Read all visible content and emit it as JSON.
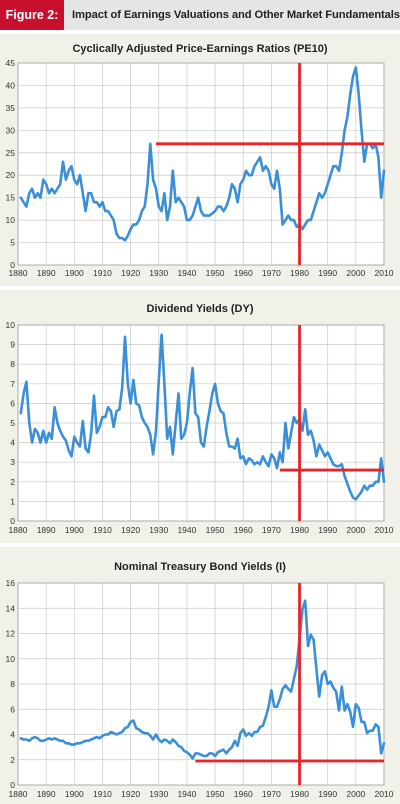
{
  "figure": {
    "label": "Figure 2:",
    "title": "Impact of Earnings Valuations and Other Market Fundamentals"
  },
  "colors": {
    "line": "#3a8fd6",
    "reference": "#e8232a",
    "panel_bg": "#f2f1e9",
    "plot_bg": "#ffffff",
    "grid": "#c9c9c9",
    "header_accent": "#c8102e"
  },
  "chart_data": [
    {
      "type": "line",
      "title": "Cyclically Adjusted Price-Earnings Ratios (PE10)",
      "xlim": [
        1880,
        2010
      ],
      "ylim": [
        0,
        45
      ],
      "xticks": [
        1880,
        1890,
        1900,
        1910,
        1920,
        1930,
        1940,
        1950,
        1960,
        1970,
        1980,
        1990,
        2000,
        2010
      ],
      "yticks": [
        0,
        5,
        10,
        15,
        20,
        25,
        30,
        35,
        40,
        45
      ],
      "grid": true,
      "series": [
        {
          "x": [
            1881,
            1882,
            1883,
            1884,
            1885,
            1886,
            1887,
            1888,
            1889,
            1890,
            1891,
            1892,
            1893,
            1894,
            1895,
            1896,
            1897,
            1898,
            1899,
            1900,
            1901,
            1902,
            1903,
            1904,
            1905,
            1906,
            1907,
            1908,
            1909,
            1910,
            1911,
            1912,
            1913,
            1914,
            1915,
            1916,
            1917,
            1918,
            1919,
            1920,
            1921,
            1922,
            1923,
            1924,
            1925,
            1926,
            1927,
            1928,
            1929,
            1930,
            1931,
            1932,
            1933,
            1934,
            1935,
            1936,
            1937,
            1938,
            1939,
            1940,
            1941,
            1942,
            1943,
            1944,
            1945,
            1946,
            1947,
            1948,
            1949,
            1950,
            1951,
            1952,
            1953,
            1954,
            1955,
            1956,
            1957,
            1958,
            1959,
            1960,
            1961,
            1962,
            1963,
            1964,
            1965,
            1966,
            1967,
            1968,
            1969,
            1970,
            1971,
            1972,
            1973,
            1974,
            1975,
            1976,
            1977,
            1978,
            1979,
            1980,
            1981,
            1982,
            1983,
            1984,
            1985,
            1986,
            1987,
            1988,
            1989,
            1990,
            1991,
            1992,
            1993,
            1994,
            1995,
            1996,
            1997,
            1998,
            1999,
            2000,
            2001,
            2002,
            2003,
            2004,
            2005,
            2006,
            2007,
            2008,
            2009,
            2010
          ],
          "y": [
            15,
            14,
            13,
            16,
            17,
            15,
            16,
            15,
            19,
            18,
            16,
            17,
            16,
            17,
            18,
            23,
            19,
            21,
            22,
            19,
            18,
            20,
            16,
            12,
            16,
            16,
            14,
            14,
            13,
            14,
            12,
            12,
            11,
            10,
            7,
            6,
            6,
            5.5,
            6.5,
            8,
            9,
            9,
            10,
            12,
            13,
            18,
            27,
            19,
            17,
            13,
            12,
            16,
            10,
            13,
            21,
            14,
            15,
            14,
            13,
            10,
            10,
            11,
            13,
            15,
            12,
            11,
            11,
            11,
            11.5,
            12,
            13,
            13,
            12,
            13,
            15,
            18,
            17,
            14,
            18,
            19,
            21,
            20,
            20,
            22,
            23,
            24,
            21,
            22,
            21,
            18,
            17,
            21,
            17,
            9,
            10,
            11,
            10,
            10,
            8.5,
            9,
            8,
            9,
            10,
            10,
            12,
            14,
            16,
            15,
            16,
            18,
            20,
            22,
            22,
            21,
            25,
            30,
            33,
            38,
            42,
            44,
            38,
            30,
            23,
            27,
            27,
            26,
            27,
            24,
            15,
            21
          ]
        }
      ],
      "reference_lines": [
        {
          "orientation": "horizontal",
          "y": 27,
          "x_from": 1929,
          "x_to": 2010
        },
        {
          "orientation": "vertical",
          "x": 1980,
          "y_from": 0,
          "y_to": 45
        }
      ]
    },
    {
      "type": "line",
      "title": "Dividend Yields (DY)",
      "xlim": [
        1880,
        2010
      ],
      "ylim": [
        0,
        10
      ],
      "xticks": [
        1880,
        1890,
        1900,
        1910,
        1920,
        1930,
        1940,
        1950,
        1960,
        1970,
        1980,
        1990,
        2000,
        2010
      ],
      "yticks": [
        0,
        1,
        2,
        3,
        4,
        5,
        6,
        7,
        8,
        9,
        10
      ],
      "grid": true,
      "series": [
        {
          "x": [
            1881,
            1882,
            1883,
            1884,
            1885,
            1886,
            1887,
            1888,
            1889,
            1890,
            1891,
            1892,
            1893,
            1894,
            1895,
            1896,
            1897,
            1898,
            1899,
            1900,
            1901,
            1902,
            1903,
            1904,
            1905,
            1906,
            1907,
            1908,
            1909,
            1910,
            1911,
            1912,
            1913,
            1914,
            1915,
            1916,
            1917,
            1918,
            1919,
            1920,
            1921,
            1922,
            1923,
            1924,
            1925,
            1926,
            1927,
            1928,
            1929,
            1930,
            1931,
            1932,
            1933,
            1934,
            1935,
            1936,
            1937,
            1938,
            1939,
            1940,
            1941,
            1942,
            1943,
            1944,
            1945,
            1946,
            1947,
            1948,
            1949,
            1950,
            1951,
            1952,
            1953,
            1954,
            1955,
            1956,
            1957,
            1958,
            1959,
            1960,
            1961,
            1962,
            1963,
            1964,
            1965,
            1966,
            1967,
            1968,
            1969,
            1970,
            1971,
            1972,
            1973,
            1974,
            1975,
            1976,
            1977,
            1978,
            1979,
            1980,
            1981,
            1982,
            1983,
            1984,
            1985,
            1986,
            1987,
            1988,
            1989,
            1990,
            1991,
            1992,
            1993,
            1994,
            1995,
            1996,
            1997,
            1998,
            1999,
            2000,
            2001,
            2002,
            2003,
            2004,
            2005,
            2006,
            2007,
            2008,
            2009,
            2010
          ],
          "y": [
            5.5,
            6.5,
            7.1,
            5.0,
            4.0,
            4.7,
            4.5,
            4.0,
            4.6,
            4.0,
            4.5,
            4.2,
            5.8,
            5.0,
            4.6,
            4.3,
            4.1,
            3.6,
            3.3,
            4.3,
            4.0,
            3.8,
            5.1,
            3.7,
            3.5,
            4.5,
            6.4,
            4.5,
            4.8,
            5.3,
            5.3,
            5.8,
            5.6,
            4.8,
            5.6,
            5.7,
            6.8,
            9.4,
            7.0,
            6.0,
            7.2,
            6.0,
            5.9,
            5.3,
            5.0,
            4.8,
            4.4,
            3.4,
            4.6,
            7.2,
            9.5,
            7.0,
            4.2,
            4.8,
            3.4,
            5.0,
            6.5,
            4.2,
            4.4,
            5.0,
            6.5,
            7.8,
            5.5,
            5.3,
            4.0,
            3.8,
            4.8,
            5.6,
            6.5,
            7.0,
            6.0,
            5.6,
            5.5,
            4.5,
            3.8,
            3.8,
            3.7,
            4.2,
            3.2,
            3.3,
            2.9,
            3.2,
            3.1,
            2.9,
            3.0,
            2.9,
            3.3,
            3.0,
            2.8,
            3.4,
            3.2,
            2.7,
            3.5,
            3.0,
            5.0,
            3.7,
            4.5,
            5.3,
            5.0,
            5.2,
            4.6,
            5.7,
            4.4,
            4.6,
            4.1,
            3.3,
            3.9,
            3.6,
            3.3,
            3.5,
            3.2,
            2.9,
            2.8,
            2.8,
            2.9,
            2.3,
            1.9,
            1.5,
            1.2,
            1.1,
            1.3,
            1.5,
            1.8,
            1.6,
            1.8,
            1.8,
            2.0,
            2.0,
            3.2,
            2.0
          ]
        }
      ],
      "reference_lines": [
        {
          "orientation": "horizontal",
          "y": 2.6,
          "x_from": 1973,
          "x_to": 2010
        },
        {
          "orientation": "vertical",
          "x": 1980,
          "y_from": 0,
          "y_to": 10
        }
      ]
    },
    {
      "type": "line",
      "title": "Nominal Treasury Bond Yields (I)",
      "xlim": [
        1880,
        2010
      ],
      "ylim": [
        0,
        16
      ],
      "xticks": [
        1880,
        1890,
        1900,
        1910,
        1920,
        1930,
        1940,
        1950,
        1960,
        1970,
        1980,
        1990,
        2000,
        2010
      ],
      "yticks": [
        0,
        2,
        4,
        6,
        8,
        10,
        12,
        14,
        16
      ],
      "grid": true,
      "series": [
        {
          "x": [
            1881,
            1882,
            1883,
            1884,
            1885,
            1886,
            1887,
            1888,
            1889,
            1890,
            1891,
            1892,
            1893,
            1894,
            1895,
            1896,
            1897,
            1898,
            1899,
            1900,
            1901,
            1902,
            1903,
            1904,
            1905,
            1906,
            1907,
            1908,
            1909,
            1910,
            1911,
            1912,
            1913,
            1914,
            1915,
            1916,
            1917,
            1918,
            1919,
            1920,
            1921,
            1922,
            1923,
            1924,
            1925,
            1926,
            1927,
            1928,
            1929,
            1930,
            1931,
            1932,
            1933,
            1934,
            1935,
            1936,
            1937,
            1938,
            1939,
            1940,
            1941,
            1942,
            1943,
            1944,
            1945,
            1946,
            1947,
            1948,
            1949,
            1950,
            1951,
            1952,
            1953,
            1954,
            1955,
            1956,
            1957,
            1958,
            1959,
            1960,
            1961,
            1962,
            1963,
            1964,
            1965,
            1966,
            1967,
            1968,
            1969,
            1970,
            1971,
            1972,
            1973,
            1974,
            1975,
            1976,
            1977,
            1978,
            1979,
            1980,
            1981,
            1982,
            1983,
            1984,
            1985,
            1986,
            1987,
            1988,
            1989,
            1990,
            1991,
            1992,
            1993,
            1994,
            1995,
            1996,
            1997,
            1998,
            1999,
            2000,
            2001,
            2002,
            2003,
            2004,
            2005,
            2006,
            2007,
            2008,
            2009,
            2010
          ],
          "y": [
            3.7,
            3.6,
            3.6,
            3.5,
            3.7,
            3.8,
            3.7,
            3.5,
            3.5,
            3.6,
            3.7,
            3.6,
            3.7,
            3.6,
            3.5,
            3.5,
            3.3,
            3.3,
            3.2,
            3.2,
            3.3,
            3.3,
            3.4,
            3.5,
            3.5,
            3.6,
            3.7,
            3.8,
            3.7,
            3.9,
            4.0,
            4.0,
            4.2,
            4.1,
            4.0,
            4.1,
            4.2,
            4.5,
            4.6,
            5.0,
            5.1,
            4.5,
            4.4,
            4.2,
            4.1,
            4.1,
            3.9,
            3.6,
            4.0,
            3.6,
            3.4,
            3.6,
            3.5,
            3.3,
            3.6,
            3.4,
            3.1,
            3.0,
            2.7,
            2.6,
            2.4,
            2.1,
            2.5,
            2.5,
            2.4,
            2.3,
            2.3,
            2.5,
            2.5,
            2.3,
            2.6,
            2.7,
            2.8,
            2.5,
            2.8,
            3.0,
            3.5,
            3.1,
            4.1,
            4.4,
            3.9,
            4.1,
            3.9,
            4.2,
            4.2,
            4.6,
            4.7,
            5.4,
            6.2,
            7.5,
            6.2,
            6.2,
            6.8,
            7.6,
            7.9,
            7.6,
            7.4,
            8.4,
            9.4,
            11.5,
            13.9,
            14.6,
            11.0,
            11.9,
            11.5,
            9.2,
            7.0,
            8.7,
            9.0,
            8.0,
            8.2,
            7.7,
            7.4,
            5.9,
            7.8,
            5.9,
            6.4,
            5.8,
            4.6,
            6.4,
            6.1,
            5.0,
            5.0,
            4.1,
            4.3,
            4.3,
            4.8,
            4.6,
            2.5,
            3.3
          ]
        }
      ],
      "reference_lines": [
        {
          "orientation": "horizontal",
          "y": 1.9,
          "x_from": 1943,
          "x_to": 2010
        },
        {
          "orientation": "vertical",
          "x": 1980,
          "y_from": 0,
          "y_to": 16
        }
      ]
    }
  ]
}
